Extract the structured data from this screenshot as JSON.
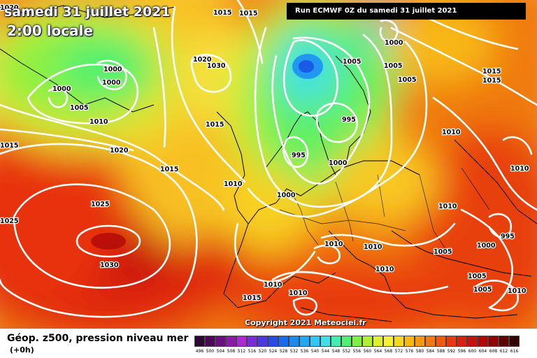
{
  "header": {
    "date": "samedi 31 juillet 2021",
    "local_time": "2:00 locale"
  },
  "run_label": "Run ECMWF 0Z du samedi 31 juillet 2021",
  "copyright": "Copyright 2021 Meteociel.fr",
  "legend": {
    "title": "Géop. z500, pression niveau mer",
    "subtitle": "(+0h)",
    "scale_values": [
      "496",
      "500",
      "504",
      "508",
      "512",
      "516",
      "520",
      "524",
      "528",
      "532",
      "536",
      "540",
      "544",
      "548",
      "552",
      "556",
      "560",
      "564",
      "568",
      "572",
      "576",
      "580",
      "584",
      "588",
      "592",
      "596",
      "600",
      "604",
      "608",
      "612",
      "616"
    ],
    "scale_colors": [
      "#2a0a30",
      "#4b0a55",
      "#6a0f80",
      "#8a1aa8",
      "#a82ad0",
      "#7a2ad8",
      "#4b3ae0",
      "#2a4ae8",
      "#1a6af0",
      "#1a8af5",
      "#20a8f8",
      "#30c8f8",
      "#40e0e8",
      "#40f0b0",
      "#50f070",
      "#80f040",
      "#b0f030",
      "#e0f030",
      "#f8f030",
      "#f8d820",
      "#f8b810",
      "#f89810",
      "#f87810",
      "#f05810",
      "#e83a10",
      "#d82010",
      "#c81010",
      "#b00808",
      "#900000",
      "#600000",
      "#300000"
    ]
  },
  "isobar_labels": [
    "1000",
    "1000",
    "1000",
    "1005",
    "1010",
    "1015",
    "1015",
    "1020",
    "1030",
    "1020",
    "1015",
    "1015",
    "1020",
    "1015",
    "1010",
    "1025",
    "1025",
    "1030",
    "1005",
    "1000",
    "1005",
    "1005",
    "995",
    "995",
    "1000",
    "1000",
    "1015",
    "1015",
    "1010",
    "1010",
    "1010",
    "1010",
    "1010",
    "1005",
    "995",
    "1000",
    "1005",
    "1005",
    "1010",
    "1010",
    "1015",
    "1010",
    "1010",
    "1005"
  ]
}
